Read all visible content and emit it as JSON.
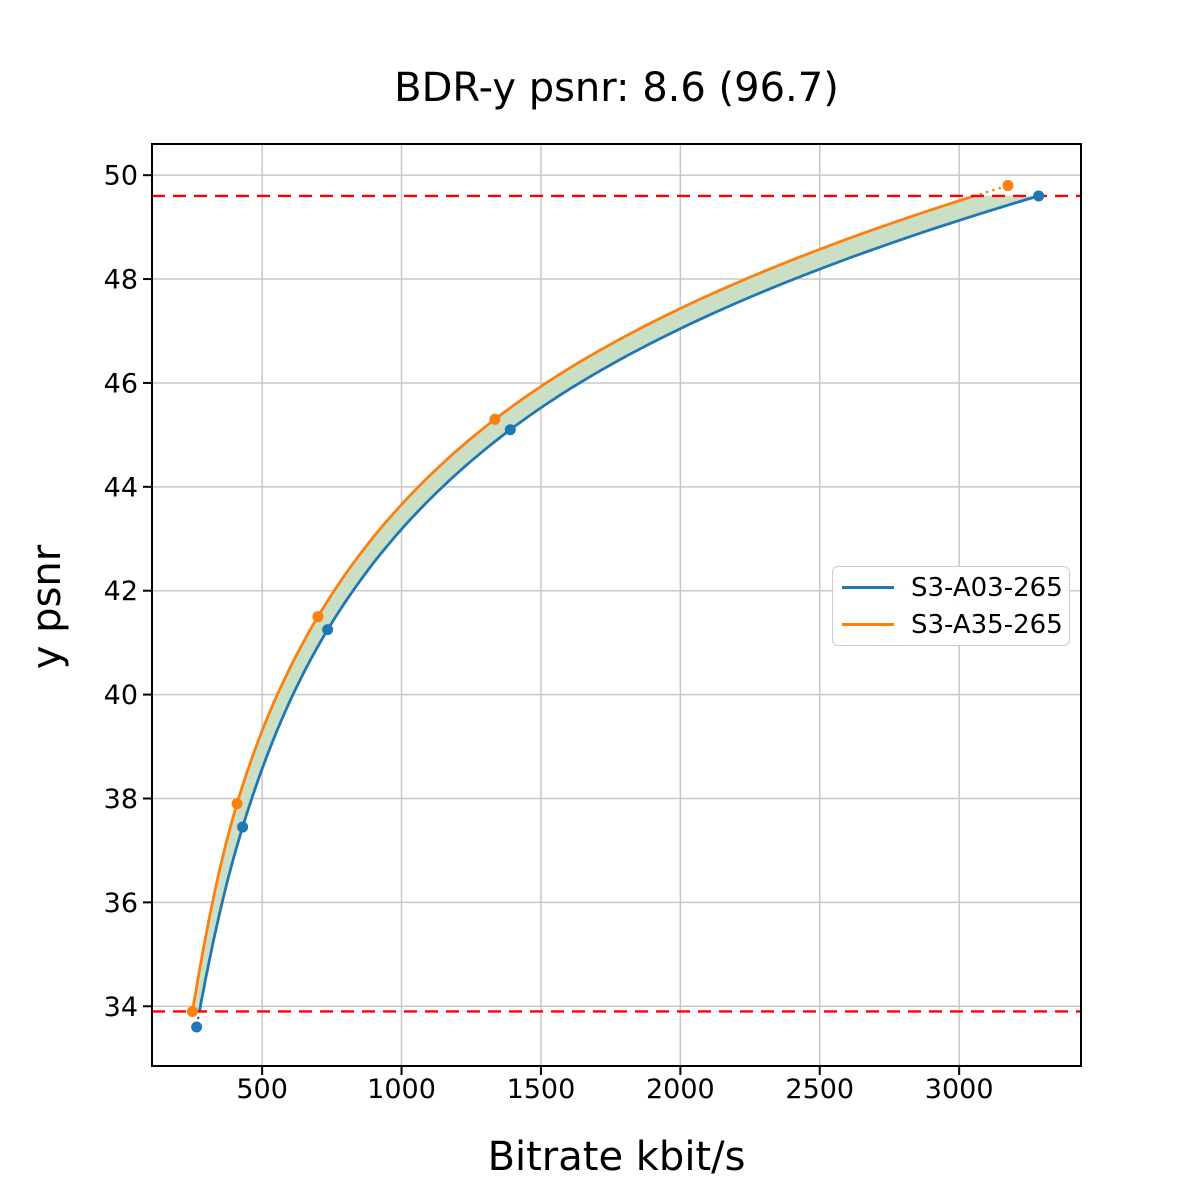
{
  "chart_data": {
    "type": "line",
    "title": "BDR-y psnr: 8.6 (96.7)",
    "xlabel": "Bitrate kbit/s",
    "ylabel": "y psnr",
    "xlim": [
      105,
      3437
    ],
    "ylim": [
      32.85,
      50.6
    ],
    "x_ticks": [
      500,
      1000,
      1500,
      2000,
      2500,
      3000
    ],
    "y_ticks": [
      34,
      36,
      38,
      40,
      42,
      44,
      46,
      48,
      50
    ],
    "grid": true,
    "grid_color": "#c8c8c8",
    "legend_position": "center-right",
    "series": [
      {
        "name": "S3-A03-265",
        "color": "#1f77b4",
        "points": [
          [
            265,
            33.6
          ],
          [
            430,
            37.45
          ],
          [
            735,
            41.25
          ],
          [
            1390,
            45.1
          ],
          [
            3285,
            49.6
          ]
        ]
      },
      {
        "name": "S3-A35-265",
        "color": "#ff7f0e",
        "points": [
          [
            250,
            33.9
          ],
          [
            410,
            37.9
          ],
          [
            700,
            41.5
          ],
          [
            1335,
            45.3
          ],
          [
            3175,
            49.8
          ]
        ]
      }
    ],
    "overlap_band": {
      "low": 33.9,
      "high": 49.6,
      "fill_color": "#cbdfc4",
      "line_color": "#ff0000",
      "line_style": "dashed"
    }
  }
}
